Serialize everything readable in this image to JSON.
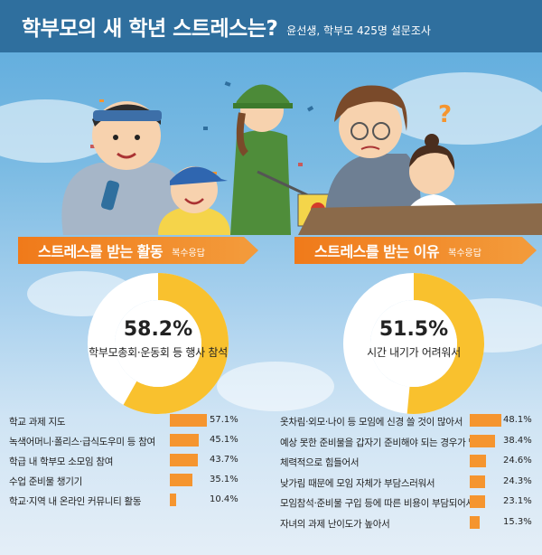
{
  "header": {
    "title": "학부모의 새 학년 스트레스는?",
    "subtitle": "윤선생, 학부모 425명 설문조사"
  },
  "left": {
    "banner_label": "스트레스를 받는 활동",
    "banner_note": "복수응답",
    "donut_pct": "58.2%",
    "donut_desc": "학부모총회·운동회 등 행사 참석"
  },
  "right": {
    "banner_label": "스트레스를 받는 이유",
    "banner_note": "복수응답",
    "donut_pct": "51.5%",
    "donut_desc": "시간 내기가 어려워서"
  },
  "colors": {
    "accent": "#f5952f",
    "donut_fill": "#f9c12e",
    "header": "#2f6f9e"
  },
  "chart_data": [
    {
      "type": "pie",
      "title": "스트레스를 받는 활동",
      "values": [
        58.2
      ],
      "categories": [
        "학부모총회·운동회 등 행사 참석"
      ]
    },
    {
      "type": "pie",
      "title": "스트레스를 받는 이유",
      "values": [
        51.5
      ],
      "categories": [
        "시간 내기가 어려워서"
      ]
    },
    {
      "type": "bar",
      "title": "",
      "categories": [
        "학교 과제 지도",
        "녹색어머니·폴리스·급식도우미 등 참여",
        "학급 내 학부모 소모임 참여",
        "수업 준비물 챙기기",
        "학교·지역 내 온라인 커뮤니티 활동"
      ],
      "values": [
        57.1,
        45.1,
        43.7,
        35.1,
        10.4
      ],
      "labels": [
        "57.1%",
        "45.1%",
        "43.7%",
        "35.1%",
        "10.4%"
      ]
    },
    {
      "type": "bar",
      "title": "",
      "categories": [
        "옷차림·외모·나이 등 모임에 신경 쓸 것이 많아서",
        "예상 못한 준비물을 갑자기 준비해야 되는 경우가 많아서",
        "체력적으로 힘들어서",
        "낮가림 때문에 모임 자체가 부담스러워서",
        "모임참석·준비물 구입 등에 따른 비용이 부담되어서",
        "자녀의 과제 난이도가 높아서"
      ],
      "values": [
        48.1,
        38.4,
        24.6,
        24.3,
        23.1,
        15.3
      ],
      "labels": [
        "48.1%",
        "38.4%",
        "24.6%",
        "24.3%",
        "23.1%",
        "15.3%"
      ]
    }
  ]
}
